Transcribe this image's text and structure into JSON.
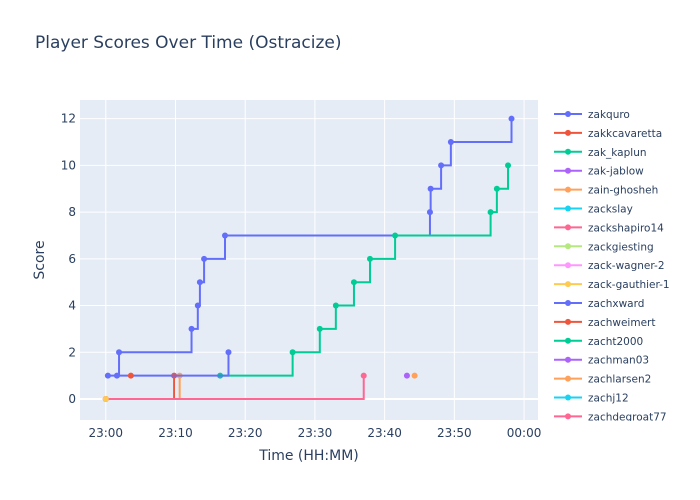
{
  "chart_data": {
    "type": "line",
    "line_shape": "step-hv",
    "title": "Player Scores Over Time (Ostracize)",
    "xlabel": "Time (HH:MM)",
    "ylabel": "Score",
    "x_units": "minutes after 23:00",
    "xlim": [
      -3.7,
      62
    ],
    "ylim": [
      -0.9,
      12.8
    ],
    "xticks": [
      {
        "v": 0,
        "label": "23:00"
      },
      {
        "v": 10,
        "label": "23:10"
      },
      {
        "v": 20,
        "label": "23:20"
      },
      {
        "v": 30,
        "label": "23:30"
      },
      {
        "v": 40,
        "label": "23:40"
      },
      {
        "v": 50,
        "label": "23:50"
      },
      {
        "v": 60,
        "label": "00:00"
      }
    ],
    "yticks": [
      {
        "v": 0,
        "label": "0"
      },
      {
        "v": 2,
        "label": "2"
      },
      {
        "v": 4,
        "label": "4"
      },
      {
        "v": 6,
        "label": "6"
      },
      {
        "v": 8,
        "label": "8"
      },
      {
        "v": 10,
        "label": "10"
      },
      {
        "v": 12,
        "label": "12"
      }
    ],
    "grid": true,
    "legend_position": "right",
    "series": [
      {
        "name": "zakquro",
        "color": "#636efa",
        "x": [
          0.3,
          1.9,
          12.3,
          13.2,
          13.5,
          14.1,
          17.1,
          46.5,
          46.6,
          48.1,
          49.5,
          58.2
        ],
        "y": [
          1,
          2,
          3,
          4,
          5,
          6,
          7,
          8,
          9,
          10,
          11,
          12
        ]
      },
      {
        "name": "zakkcavaretta",
        "color": "#EF553B",
        "x": [
          0,
          9.8
        ],
        "y": [
          0,
          1
        ]
      },
      {
        "name": "zak_kaplun",
        "color": "#00cc96",
        "x": [
          16.4,
          26.8,
          30.7,
          33.0,
          35.6,
          37.9,
          41.5,
          55.2,
          56.1,
          57.7
        ],
        "y": [
          1,
          2,
          3,
          4,
          5,
          6,
          7,
          8,
          9,
          10
        ]
      },
      {
        "name": "zak-jablow",
        "color": "#ab63fa",
        "x": [
          43.2
        ],
        "y": [
          1
        ]
      },
      {
        "name": "zain-ghosheh",
        "color": "#FFA15A",
        "x": [
          0,
          10.6
        ],
        "y": [
          0,
          1
        ]
      },
      {
        "name": "zackslay",
        "color": "#19d3f3",
        "x": [],
        "y": []
      },
      {
        "name": "zackshapiro14",
        "color": "#FF6692",
        "x": [
          0,
          37.0
        ],
        "y": [
          0,
          1
        ]
      },
      {
        "name": "zackgiesting",
        "color": "#B6E880",
        "x": [],
        "y": []
      },
      {
        "name": "zack-wagner-2",
        "color": "#FF97FF",
        "x": [],
        "y": []
      },
      {
        "name": "zack-gauthier-1",
        "color": "#FECB52",
        "x": [
          0
        ],
        "y": [
          0
        ]
      },
      {
        "name": "zachxward",
        "color": "#636efa",
        "x": [
          1.6,
          17.6
        ],
        "y": [
          1,
          2
        ]
      },
      {
        "name": "zachweimert",
        "color": "#EF553B",
        "x": [
          3.6
        ],
        "y": [
          1
        ]
      },
      {
        "name": "zacht2000",
        "color": "#00cc96",
        "x": [],
        "y": []
      },
      {
        "name": "zachman03",
        "color": "#ab63fa",
        "x": [],
        "y": []
      },
      {
        "name": "zachlarsen2",
        "color": "#FFA15A",
        "x": [
          44.3
        ],
        "y": [
          1
        ]
      },
      {
        "name": "zachj12",
        "color": "#19d3f3",
        "x": [],
        "y": []
      },
      {
        "name": "zachdegroat77",
        "color": "#FF6692",
        "x": [],
        "y": []
      }
    ]
  }
}
